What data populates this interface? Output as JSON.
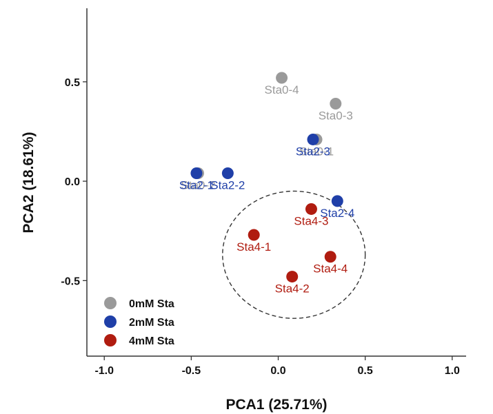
{
  "chart_data": {
    "type": "scatter",
    "title": "",
    "xlabel": "PCA1 (25.71%)",
    "ylabel": "PCA2 (18.61%)",
    "xlim": [
      -1.1,
      1.08
    ],
    "ylim": [
      -0.88,
      0.87
    ],
    "xticks": [
      -1.0,
      -0.5,
      0.0,
      0.5,
      1.0
    ],
    "xtick_labels": [
      "-1.0",
      "-0.5",
      "0.0",
      "0.5",
      "1.0"
    ],
    "yticks": [
      -0.5,
      0.0,
      0.5
    ],
    "ytick_labels": [
      "-0.5",
      "0.0",
      "0.5"
    ],
    "grid": false,
    "legend_position": "bottom-left",
    "series": [
      {
        "name": "0mM Sta",
        "color": "#9a9a9a",
        "points": [
          {
            "label": "Sta0-4",
            "x": 0.02,
            "y": 0.52
          },
          {
            "label": "Sta0-3",
            "x": 0.33,
            "y": 0.39
          },
          {
            "label": "Sta0-1",
            "x": 0.22,
            "y": 0.21
          },
          {
            "label": "Sta0-2",
            "x": -0.46,
            "y": 0.04
          }
        ]
      },
      {
        "name": "2mM Sta",
        "color": "#1f3fa8",
        "points": [
          {
            "label": "Sta2-3",
            "x": 0.2,
            "y": 0.21
          },
          {
            "label": "Sta2-1",
            "x": -0.47,
            "y": 0.04
          },
          {
            "label": "Sta2-2",
            "x": -0.29,
            "y": 0.04
          },
          {
            "label": "Sta2-4",
            "x": 0.34,
            "y": -0.1
          }
        ]
      },
      {
        "name": "4mM Sta",
        "color": "#b01c10",
        "points": [
          {
            "label": "Sta4-3",
            "x": 0.19,
            "y": -0.14
          },
          {
            "label": "Sta4-1",
            "x": -0.14,
            "y": -0.27
          },
          {
            "label": "Sta4-4",
            "x": 0.3,
            "y": -0.38
          },
          {
            "label": "Sta4-2",
            "x": 0.08,
            "y": -0.48
          }
        ]
      }
    ],
    "ellipse": {
      "cx": 0.09,
      "cy": -0.37,
      "rx": 0.41,
      "ry": 0.32,
      "style": "dashed"
    }
  }
}
